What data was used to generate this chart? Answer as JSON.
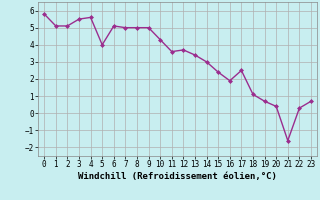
{
  "x": [
    0,
    1,
    2,
    3,
    4,
    5,
    6,
    7,
    8,
    9,
    10,
    11,
    12,
    13,
    14,
    15,
    16,
    17,
    18,
    19,
    20,
    21,
    22,
    23
  ],
  "y": [
    5.8,
    5.1,
    5.1,
    5.5,
    5.6,
    4.0,
    5.1,
    5.0,
    5.0,
    5.0,
    4.3,
    3.6,
    3.7,
    3.4,
    3.0,
    2.4,
    1.9,
    2.5,
    1.1,
    0.7,
    0.4,
    -1.6,
    0.3,
    0.7
  ],
  "line_color": "#9b2d8e",
  "marker": "D",
  "marker_size": 2,
  "linewidth": 1.0,
  "bg_color": "#c8eef0",
  "grid_color": "#b0b0b0",
  "xlabel": "Windchill (Refroidissement éolien,°C)",
  "xlabel_fontsize": 6.5,
  "ylim": [
    -2.5,
    6.5
  ],
  "xlim": [
    -0.5,
    23.5
  ],
  "yticks": [
    -2,
    -1,
    0,
    1,
    2,
    3,
    4,
    5,
    6
  ],
  "xtick_labels": [
    "0",
    "1",
    "2",
    "3",
    "4",
    "5",
    "6",
    "7",
    "8",
    "9",
    "10",
    "11",
    "12",
    "13",
    "14",
    "15",
    "16",
    "17",
    "18",
    "19",
    "20",
    "21",
    "22",
    "23"
  ],
  "tick_fontsize": 5.5
}
